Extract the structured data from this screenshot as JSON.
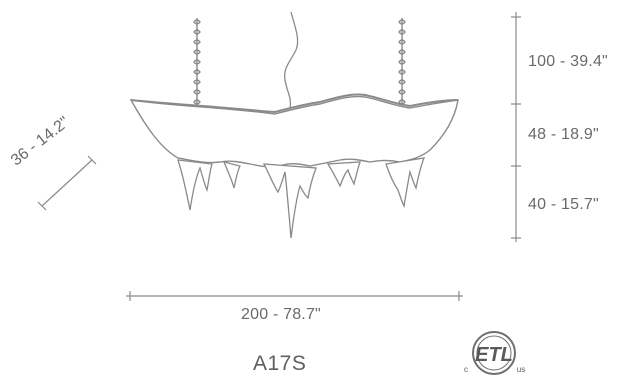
{
  "model": "A17S",
  "dimensions": {
    "height_top": "100 - 39.4\"",
    "height_middle": "48 - 18.9\"",
    "height_bottom": "40 - 15.7\"",
    "width": "200 - 78.7\"",
    "depth": "36 - 14.2\""
  },
  "certification": {
    "mark": "ETL",
    "prefix": "c",
    "suffix": "us"
  },
  "colors": {
    "line": "#8a8a8a",
    "text": "#6a6a6a"
  }
}
